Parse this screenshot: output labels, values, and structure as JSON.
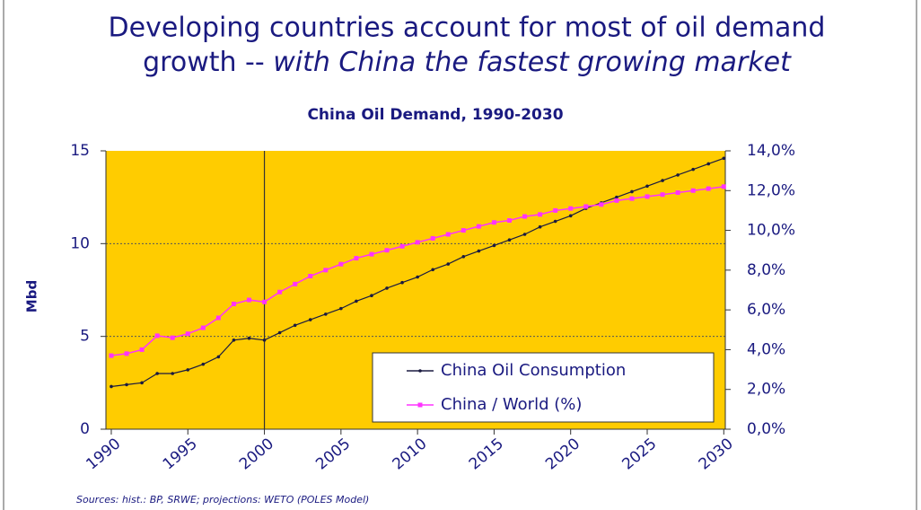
{
  "slide": {
    "title_line1": "Developing countries account for most of oil demand",
    "title_line2_prefix": "growth -- ",
    "title_line2_italic": "with China the fastest growing market",
    "source": "Sources: hist.: BP, SRWE; projections: WETO (POLES Model)"
  },
  "chart_data": {
    "type": "line",
    "title": "China Oil Demand, 1990-2030",
    "y_label": "Mbd",
    "x": [
      1990,
      1991,
      1992,
      1993,
      1994,
      1995,
      1996,
      1997,
      1998,
      1999,
      2000,
      2001,
      2002,
      2003,
      2004,
      2005,
      2006,
      2007,
      2008,
      2009,
      2010,
      2011,
      2012,
      2013,
      2014,
      2015,
      2016,
      2017,
      2018,
      2019,
      2020,
      2021,
      2022,
      2023,
      2024,
      2025,
      2026,
      2027,
      2028,
      2029,
      2030
    ],
    "series": [
      {
        "name": "China Oil Consumption",
        "color": "#1a1a40",
        "values": [
          2.3,
          2.4,
          2.5,
          3.0,
          3.0,
          3.2,
          3.5,
          3.9,
          4.8,
          4.9,
          4.8,
          5.2,
          5.6,
          5.9,
          6.2,
          6.5,
          6.9,
          7.2,
          7.6,
          7.9,
          8.2,
          8.6,
          8.9,
          9.3,
          9.6,
          9.9,
          10.2,
          10.5,
          10.9,
          11.2,
          11.5,
          11.9,
          12.2,
          12.5,
          12.8,
          13.1,
          13.4,
          13.7,
          14.0,
          14.3,
          14.6
        ]
      },
      {
        "name": "China / World (%)",
        "color": "#ff33ff",
        "axis": "y2",
        "values": [
          3.7,
          3.8,
          4.0,
          4.7,
          4.6,
          4.8,
          5.1,
          5.6,
          6.3,
          6.5,
          6.4,
          6.9,
          7.3,
          7.7,
          8.0,
          8.3,
          8.6,
          8.8,
          9.0,
          9.2,
          9.4,
          9.6,
          9.8,
          10.0,
          10.2,
          10.4,
          10.5,
          10.7,
          10.8,
          11.0,
          11.1,
          11.2,
          11.3,
          11.5,
          11.6,
          11.7,
          11.8,
          11.9,
          12.0,
          12.1,
          12.2
        ]
      }
    ],
    "xlim": [
      1989.65,
      2030.1
    ],
    "xticks": [
      1990,
      1995,
      2000,
      2005,
      2010,
      2015,
      2020,
      2025,
      2030
    ],
    "ylim": [
      0,
      15
    ],
    "yticks": [
      0,
      5,
      10,
      15
    ],
    "y2lim": [
      0,
      14
    ],
    "y2ticks": [
      {
        "value": 0,
        "label": "0,0%"
      },
      {
        "value": 2,
        "label": "2,0%"
      },
      {
        "value": 4,
        "label": "4,0%"
      },
      {
        "value": 6,
        "label": "6,0%"
      },
      {
        "value": 8,
        "label": "8,0%"
      },
      {
        "value": 10,
        "label": "10,0%"
      },
      {
        "value": 12,
        "label": "12,0%"
      },
      {
        "value": 14,
        "label": "14,0%"
      }
    ],
    "divider_x": 2000,
    "grid": true,
    "background": "#ffcc00",
    "legend": "lower right"
  }
}
